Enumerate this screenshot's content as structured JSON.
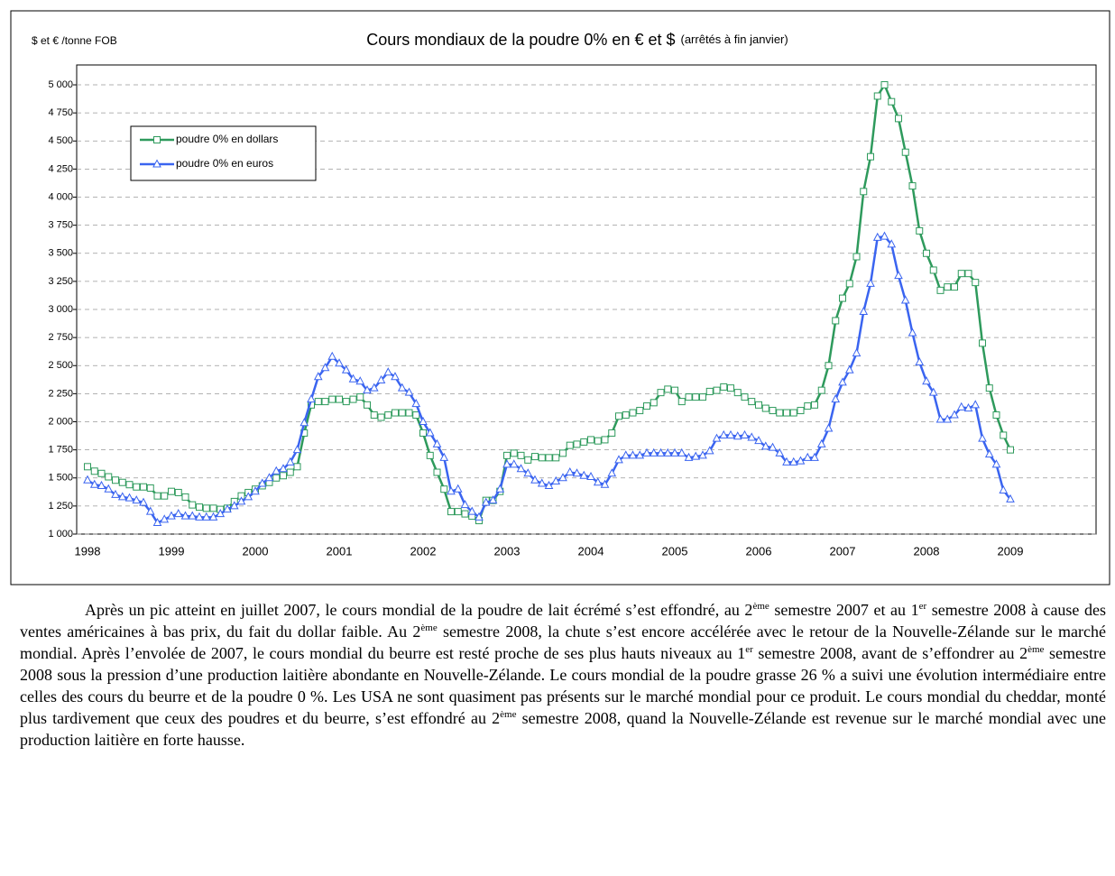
{
  "chart_data": {
    "type": "line",
    "title": "Cours mondiaux de la poudre 0% en € et $",
    "subtitle": "(arrêtés à fin janvier)",
    "y_label": "$ et € /tonne FOB",
    "categories": [
      "1998",
      null,
      null,
      null,
      null,
      null,
      null,
      null,
      null,
      null,
      null,
      null,
      "1999",
      null,
      null,
      null,
      null,
      null,
      null,
      null,
      null,
      null,
      null,
      null,
      "2000",
      null,
      null,
      null,
      null,
      null,
      null,
      null,
      null,
      null,
      null,
      null,
      "2001",
      null,
      null,
      null,
      null,
      null,
      null,
      null,
      null,
      null,
      null,
      null,
      "2002",
      null,
      null,
      null,
      null,
      null,
      null,
      null,
      null,
      null,
      null,
      null,
      "2003",
      null,
      null,
      null,
      null,
      null,
      null,
      null,
      null,
      null,
      null,
      null,
      "2004",
      null,
      null,
      null,
      null,
      null,
      null,
      null,
      null,
      null,
      null,
      null,
      "2005",
      null,
      null,
      null,
      null,
      null,
      null,
      null,
      null,
      null,
      null,
      null,
      "2006",
      null,
      null,
      null,
      null,
      null,
      null,
      null,
      null,
      null,
      null,
      null,
      "2007",
      null,
      null,
      null,
      null,
      null,
      null,
      null,
      null,
      null,
      null,
      null,
      "2008",
      null,
      null,
      null,
      null,
      null,
      null,
      null,
      null,
      null,
      null,
      null,
      "2009"
    ],
    "series": [
      {
        "name": "poudre 0% en dollars",
        "color": "#2e9a5c",
        "marker": "square",
        "values": [
          1600,
          1560,
          1540,
          1510,
          1480,
          1460,
          1440,
          1420,
          1420,
          1410,
          1340,
          1340,
          1380,
          1370,
          1330,
          1260,
          1240,
          1230,
          1230,
          1220,
          1230,
          1290,
          1340,
          1370,
          1400,
          1430,
          1460,
          1500,
          1520,
          1550,
          1600,
          1900,
          2150,
          2180,
          2180,
          2200,
          2200,
          2180,
          2200,
          2220,
          2150,
          2060,
          2040,
          2060,
          2080,
          2080,
          2080,
          2060,
          1900,
          1700,
          1550,
          1400,
          1200,
          1200,
          1180,
          1160,
          1120,
          1300,
          1300,
          1380,
          1700,
          1720,
          1700,
          1660,
          1690,
          1680,
          1680,
          1680,
          1720,
          1790,
          1800,
          1820,
          1840,
          1830,
          1840,
          1900,
          2050,
          2060,
          2080,
          2100,
          2140,
          2170,
          2260,
          2290,
          2280,
          2180,
          2220,
          2220,
          2220,
          2270,
          2280,
          2310,
          2300,
          2260,
          2220,
          2180,
          2150,
          2120,
          2100,
          2080,
          2080,
          2080,
          2100,
          2140,
          2150,
          2280,
          2500,
          2900,
          3100,
          3230,
          3470,
          4050,
          4360,
          4900,
          5000,
          4850,
          4700,
          4400,
          4100,
          3700,
          3500,
          3350,
          3170,
          3200,
          3200,
          3320,
          3320,
          3240,
          2700,
          2300,
          2060,
          1880,
          1750
        ]
      },
      {
        "name": "poudre 0% en euros",
        "color": "#3a64f0",
        "marker": "triangle",
        "values": [
          1480,
          1440,
          1430,
          1400,
          1350,
          1330,
          1320,
          1300,
          1280,
          1200,
          1100,
          1130,
          1160,
          1180,
          1160,
          1160,
          1150,
          1150,
          1150,
          1180,
          1220,
          1250,
          1290,
          1330,
          1380,
          1450,
          1500,
          1560,
          1580,
          1640,
          1750,
          1990,
          2200,
          2400,
          2480,
          2580,
          2520,
          2460,
          2380,
          2360,
          2280,
          2300,
          2370,
          2440,
          2400,
          2300,
          2260,
          2160,
          2000,
          1900,
          1800,
          1680,
          1380,
          1400,
          1260,
          1200,
          1150,
          1280,
          1300,
          1400,
          1620,
          1620,
          1580,
          1540,
          1480,
          1450,
          1430,
          1470,
          1500,
          1550,
          1540,
          1520,
          1510,
          1460,
          1440,
          1540,
          1660,
          1700,
          1700,
          1700,
          1720,
          1720,
          1720,
          1720,
          1720,
          1720,
          1680,
          1690,
          1700,
          1740,
          1850,
          1880,
          1880,
          1870,
          1880,
          1860,
          1830,
          1780,
          1770,
          1720,
          1640,
          1640,
          1650,
          1680,
          1680,
          1800,
          1940,
          2200,
          2350,
          2460,
          2610,
          2980,
          3230,
          3640,
          3650,
          3580,
          3300,
          3080,
          2790,
          2530,
          2360,
          2260,
          2020,
          2020,
          2060,
          2130,
          2120,
          2150,
          1850,
          1710,
          1620,
          1390,
          1310
        ]
      }
    ],
    "ylim": [
      1000,
      5177
    ],
    "yticks": [
      {
        "value": 1000,
        "label": "1 000"
      },
      {
        "value": 1250,
        "label": "1 250"
      },
      {
        "value": 1500,
        "label": "1 500"
      },
      {
        "value": 1750,
        "label": "1 750"
      },
      {
        "value": 2000,
        "label": "2 000"
      },
      {
        "value": 2250,
        "label": "2 250"
      },
      {
        "value": 2500,
        "label": "2 500"
      },
      {
        "value": 2750,
        "label": "2 750"
      },
      {
        "value": 3000,
        "label": "3 000"
      },
      {
        "value": 3250,
        "label": "3 250"
      },
      {
        "value": 3500,
        "label": "3 500"
      },
      {
        "value": 3750,
        "label": "3 750"
      },
      {
        "value": 4000,
        "label": "4 000"
      },
      {
        "value": 4250,
        "label": "4 250"
      },
      {
        "value": 4500,
        "label": "4 500"
      },
      {
        "value": 4750,
        "label": "4 750"
      },
      {
        "value": 5000,
        "label": "5 000"
      }
    ],
    "grid": true,
    "legend": "upper left"
  },
  "paragraph": [
    {
      "text": "Après un pic atteint en juillet 2007, le cours mondial de la poudre de lait écrémé s’est effondré, au 2"
    },
    {
      "sup": "ème"
    },
    {
      "text": " semestre 2007 et au 1"
    },
    {
      "sup": "er"
    },
    {
      "text": " semestre 2008 à cause des ventes américaines à bas prix, du fait du dollar faible. Au 2"
    },
    {
      "sup": "ème"
    },
    {
      "text": " semestre 2008, la chute s’est encore accélérée avec le retour de la Nouvelle-Zélande sur le marché mondial. Après l’envolée de 2007, le cours mondial du beurre est resté proche de ses plus hauts niveaux au 1"
    },
    {
      "sup": "er"
    },
    {
      "text": " semestre 2008, avant de s’effondrer au 2"
    },
    {
      "sup": "ème"
    },
    {
      "text": " semestre 2008 sous la pression d’une production laitière abondante en Nouvelle-Zélande. Le cours mondial de la poudre grasse 26 % a suivi une évolution intermédiaire entre celles des cours du beurre et de la poudre 0 %. Les USA ne sont quasiment pas présents sur le marché mondial pour ce produit. Le cours mondial du cheddar, monté plus tardivement que ceux des poudres et du beurre, s’est effondré au 2"
    },
    {
      "sup": "ème"
    },
    {
      "text": " semestre 2008, quand la Nouvelle-Zélande est revenue sur le marché mondial avec une production laitière en forte hausse."
    }
  ]
}
